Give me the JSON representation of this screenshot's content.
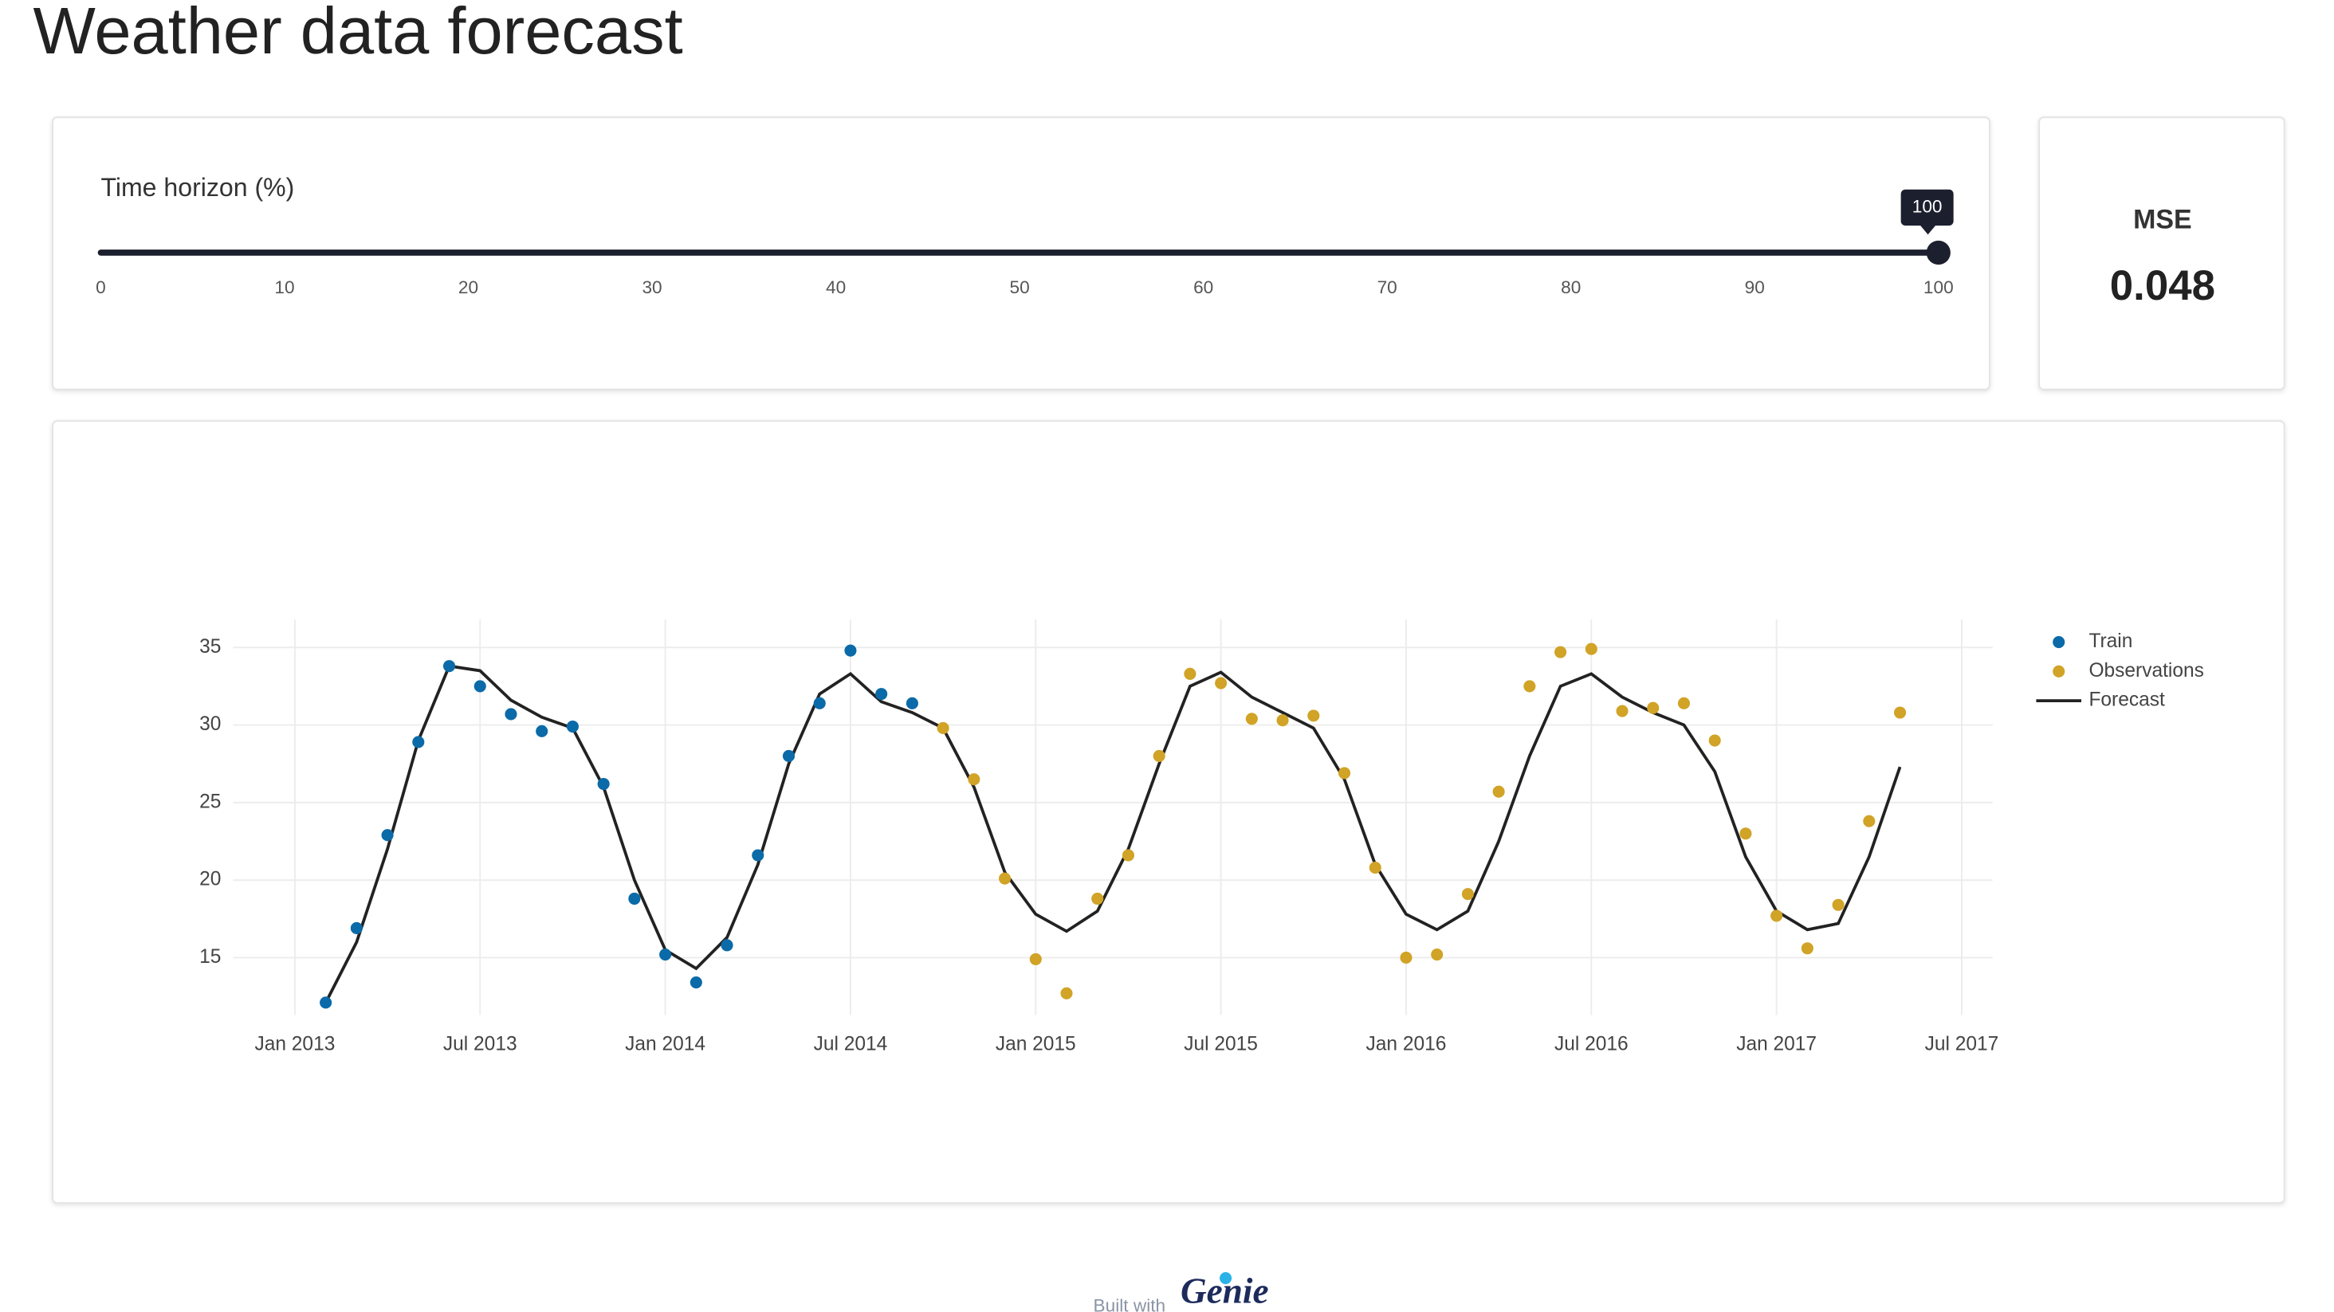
{
  "header": {
    "title": "Weather data forecast"
  },
  "slider": {
    "label": "Time horizon (%)",
    "value": 100,
    "ticks": [
      0,
      10,
      20,
      30,
      40,
      50,
      60,
      70,
      80,
      90,
      100
    ]
  },
  "mse": {
    "label": "MSE",
    "value": 0.048
  },
  "chart_data": {
    "type": "scatter",
    "xlim": [
      "2012-11",
      "2017-08"
    ],
    "xticks": [
      {
        "value": "2013-01",
        "label": "Jan 2013"
      },
      {
        "value": "2013-07",
        "label": "Jul 2013"
      },
      {
        "value": "2014-01",
        "label": "Jan 2014"
      },
      {
        "value": "2014-07",
        "label": "Jul 2014"
      },
      {
        "value": "2015-01",
        "label": "Jan 2015"
      },
      {
        "value": "2015-07",
        "label": "Jul 2015"
      },
      {
        "value": "2016-01",
        "label": "Jan 2016"
      },
      {
        "value": "2016-07",
        "label": "Jul 2016"
      },
      {
        "value": "2017-01",
        "label": "Jan 2017"
      },
      {
        "value": "2017-07",
        "label": "Jul 2017"
      }
    ],
    "ylim": [
      11.3,
      36.8
    ],
    "yticks": [
      15,
      20,
      25,
      30,
      35
    ],
    "grid": true,
    "legend": "right",
    "series": [
      {
        "name": "Train",
        "mode": "markers",
        "color": "#0b6aa8",
        "x": [
          "2013-02",
          "2013-03",
          "2013-04",
          "2013-05",
          "2013-06",
          "2013-07",
          "2013-08",
          "2013-09",
          "2013-10",
          "2013-11",
          "2013-12",
          "2014-01",
          "2014-02",
          "2014-03",
          "2014-04",
          "2014-05",
          "2014-06",
          "2014-07",
          "2014-08",
          "2014-09"
        ],
        "values": [
          12.1,
          16.9,
          22.9,
          28.9,
          33.8,
          32.5,
          30.7,
          29.6,
          29.9,
          26.2,
          18.8,
          15.2,
          13.4,
          15.8,
          21.6,
          28.0,
          31.4,
          34.8,
          32.0,
          31.4
        ]
      },
      {
        "name": "Observations",
        "mode": "markers",
        "color": "#d1a326",
        "x": [
          "2014-10",
          "2014-11",
          "2014-12",
          "2015-01",
          "2015-02",
          "2015-03",
          "2015-04",
          "2015-05",
          "2015-06",
          "2015-07",
          "2015-08",
          "2015-09",
          "2015-10",
          "2015-11",
          "2015-12",
          "2016-01",
          "2016-02",
          "2016-03",
          "2016-04",
          "2016-05",
          "2016-06",
          "2016-07",
          "2016-08",
          "2016-09",
          "2016-10",
          "2016-11",
          "2016-12",
          "2017-01",
          "2017-02",
          "2017-03",
          "2017-04",
          "2017-05"
        ],
        "values": [
          29.8,
          26.5,
          20.1,
          14.9,
          12.7,
          18.8,
          21.6,
          28.0,
          33.3,
          32.7,
          30.4,
          30.3,
          30.6,
          26.9,
          20.8,
          15.0,
          15.2,
          19.1,
          25.7,
          32.5,
          34.7,
          34.9,
          30.9,
          31.1,
          31.4,
          29.0,
          23.0,
          17.7,
          15.6,
          18.4,
          23.8,
          30.8
        ]
      },
      {
        "name": "Forecast",
        "mode": "lines",
        "color": "#222222",
        "x": [
          "2013-02",
          "2013-03",
          "2013-04",
          "2013-05",
          "2013-06",
          "2013-07",
          "2013-08",
          "2013-09",
          "2013-10",
          "2013-11",
          "2013-12",
          "2014-01",
          "2014-02",
          "2014-03",
          "2014-04",
          "2014-05",
          "2014-06",
          "2014-07",
          "2014-08",
          "2014-09",
          "2014-10",
          "2014-11",
          "2014-12",
          "2015-01",
          "2015-02",
          "2015-03",
          "2015-04",
          "2015-05",
          "2015-06",
          "2015-07",
          "2015-08",
          "2015-09",
          "2015-10",
          "2015-11",
          "2015-12",
          "2016-01",
          "2016-02",
          "2016-03",
          "2016-04",
          "2016-05",
          "2016-06",
          "2016-07",
          "2016-08",
          "2016-09",
          "2016-10",
          "2016-11",
          "2016-12",
          "2017-01",
          "2017-02",
          "2017-03",
          "2017-04",
          "2017-05"
        ],
        "values": [
          12.1,
          16.0,
          22.0,
          29.0,
          33.8,
          33.5,
          31.6,
          30.5,
          29.8,
          26.0,
          20.0,
          15.5,
          14.3,
          16.3,
          21.0,
          27.5,
          32.0,
          33.3,
          31.5,
          30.8,
          29.8,
          26.0,
          20.5,
          17.8,
          16.7,
          18.0,
          22.0,
          27.5,
          32.5,
          33.4,
          31.8,
          30.8,
          29.8,
          26.5,
          21.0,
          17.8,
          16.8,
          18.0,
          22.5,
          28.0,
          32.5,
          33.3,
          31.8,
          30.8,
          30.0,
          27.0,
          21.5,
          18.0,
          16.8,
          17.2,
          21.5,
          27.3
        ]
      }
    ]
  },
  "footer": {
    "text": "Built with",
    "logo": "Genie"
  }
}
